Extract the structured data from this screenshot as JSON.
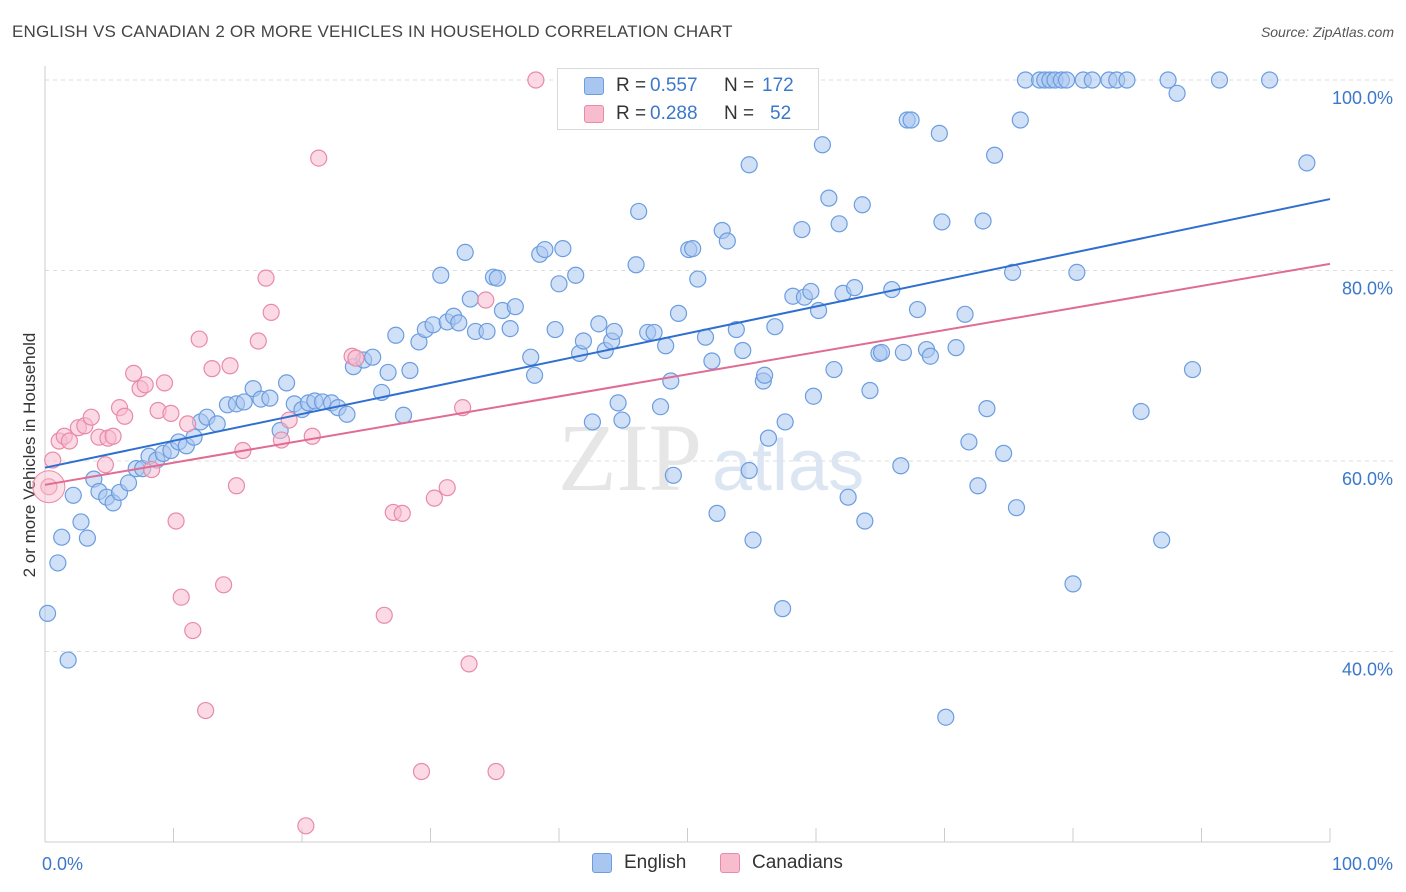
{
  "title": "ENGLISH VS CANADIAN 2 OR MORE VEHICLES IN HOUSEHOLD CORRELATION CHART",
  "source": "Source: ZipAtlas.com",
  "watermark": {
    "zip": "ZIP",
    "atlas": "atlas"
  },
  "legend": {
    "rows": [
      {
        "r_label": "R = ",
        "r_value": "0.557",
        "n_label": "N = ",
        "n_value": "172",
        "color": "#a9c6f0",
        "border": "#6b9de0"
      },
      {
        "r_label": "R = ",
        "r_value": "0.288",
        "n_label": "N = ",
        "n_value": "52",
        "color": "#f8bccf",
        "border": "#e98aa8"
      }
    ]
  },
  "bottom_legend": [
    {
      "label": "English",
      "color": "#a9c6f0",
      "border": "#6b9de0"
    },
    {
      "label": "Canadians",
      "color": "#f8bccf",
      "border": "#e98aa8"
    }
  ],
  "chart_data": {
    "type": "scatter",
    "title": "ENGLISH VS CANADIAN 2 OR MORE VEHICLES IN HOUSEHOLD CORRELATION CHART",
    "xlabel": "",
    "ylabel": "2 or more Vehicles in Household",
    "xlim": [
      0,
      100
    ],
    "ylim": [
      20,
      100
    ],
    "x_tick_labels": [
      "0.0%",
      "100.0%"
    ],
    "y_ticks": [
      40,
      60,
      80,
      100
    ],
    "y_tick_labels": [
      "40.0%",
      "60.0%",
      "80.0%",
      "100.0%"
    ],
    "grid": "horizontal dashed",
    "series": [
      {
        "name": "English",
        "color": "#6b9de0",
        "fill": "#a9c6f0",
        "trend": {
          "x": [
            0,
            100
          ],
          "y": [
            59.3,
            87.5
          ],
          "color": "#2f6fd0"
        },
        "points": [
          [
            0.2,
            44
          ],
          [
            1.3,
            52
          ],
          [
            1.0,
            49.3
          ],
          [
            1.8,
            39.1
          ],
          [
            2.2,
            56.4
          ],
          [
            2.8,
            53.6
          ],
          [
            3.3,
            51.9
          ],
          [
            3.8,
            58.1
          ],
          [
            4.2,
            56.8
          ],
          [
            4.8,
            56.2
          ],
          [
            5.3,
            55.6
          ],
          [
            5.8,
            56.7
          ],
          [
            6.5,
            57.7
          ],
          [
            7.1,
            59.2
          ],
          [
            7.6,
            59.2
          ],
          [
            8.1,
            60.5
          ],
          [
            8.7,
            60.1
          ],
          [
            9.2,
            60.8
          ],
          [
            9.8,
            61.1
          ],
          [
            10.4,
            62.0
          ],
          [
            11.0,
            61.6
          ],
          [
            11.6,
            62.5
          ],
          [
            12.1,
            64.1
          ],
          [
            12.6,
            64.6
          ],
          [
            13.4,
            63.9
          ],
          [
            14.2,
            65.9
          ],
          [
            14.9,
            66.0
          ],
          [
            15.5,
            66.2
          ],
          [
            16.2,
            67.6
          ],
          [
            16.8,
            66.5
          ],
          [
            17.5,
            66.6
          ],
          [
            18.3,
            63.2
          ],
          [
            18.8,
            68.2
          ],
          [
            19.4,
            66.0
          ],
          [
            20.0,
            65.4
          ],
          [
            20.5,
            66.1
          ],
          [
            21.0,
            66.3
          ],
          [
            21.6,
            66.2
          ],
          [
            22.3,
            66.1
          ],
          [
            22.8,
            65.6
          ],
          [
            23.5,
            64.9
          ],
          [
            24.0,
            69.9
          ],
          [
            24.8,
            70.6
          ],
          [
            25.5,
            70.9
          ],
          [
            26.2,
            67.2
          ],
          [
            26.7,
            69.3
          ],
          [
            27.3,
            73.2
          ],
          [
            27.9,
            64.8
          ],
          [
            28.4,
            69.5
          ],
          [
            29.1,
            72.5
          ],
          [
            29.6,
            73.8
          ],
          [
            30.2,
            74.3
          ],
          [
            30.8,
            79.5
          ],
          [
            31.3,
            74.6
          ],
          [
            31.8,
            75.2
          ],
          [
            32.2,
            74.5
          ],
          [
            32.7,
            81.9
          ],
          [
            33.1,
            77.0
          ],
          [
            33.5,
            73.6
          ],
          [
            34.4,
            73.6
          ],
          [
            34.9,
            79.3
          ],
          [
            35.2,
            79.2
          ],
          [
            35.6,
            75.8
          ],
          [
            36.2,
            73.9
          ],
          [
            36.6,
            76.2
          ],
          [
            37.8,
            70.9
          ],
          [
            38.1,
            69.0
          ],
          [
            38.5,
            81.7
          ],
          [
            38.9,
            82.2
          ],
          [
            39.7,
            73.8
          ],
          [
            40.0,
            78.6
          ],
          [
            40.3,
            82.3
          ],
          [
            41.3,
            79.5
          ],
          [
            41.6,
            71.3
          ],
          [
            41.9,
            72.6
          ],
          [
            42.6,
            64.1
          ],
          [
            43.1,
            74.4
          ],
          [
            43.6,
            71.6
          ],
          [
            44.1,
            72.6
          ],
          [
            44.3,
            73.6
          ],
          [
            44.6,
            66.1
          ],
          [
            44.9,
            64.3
          ],
          [
            46.0,
            80.6
          ],
          [
            46.2,
            86.2
          ],
          [
            46.9,
            73.5
          ],
          [
            47.4,
            73.5
          ],
          [
            47.9,
            65.7
          ],
          [
            48.3,
            72.1
          ],
          [
            48.7,
            68.4
          ],
          [
            48.9,
            58.5
          ],
          [
            49.3,
            75.5
          ],
          [
            50.1,
            82.2
          ],
          [
            50.4,
            82.3
          ],
          [
            50.8,
            79.1
          ],
          [
            51.4,
            73.0
          ],
          [
            51.9,
            70.5
          ],
          [
            52.3,
            54.5
          ],
          [
            52.7,
            84.2
          ],
          [
            53.1,
            83.1
          ],
          [
            53.8,
            73.8
          ],
          [
            54.3,
            71.6
          ],
          [
            54.8,
            91.1
          ],
          [
            54.8,
            59.0
          ],
          [
            55.1,
            51.7
          ],
          [
            55.9,
            68.4
          ],
          [
            56.0,
            69.0
          ],
          [
            56.3,
            62.4
          ],
          [
            56.8,
            74.1
          ],
          [
            57.4,
            44.5
          ],
          [
            57.6,
            64.1
          ],
          [
            58.2,
            77.3
          ],
          [
            58.9,
            84.3
          ],
          [
            59.1,
            77.2
          ],
          [
            59.6,
            77.8
          ],
          [
            59.8,
            66.8
          ],
          [
            60.2,
            75.8
          ],
          [
            60.5,
            93.2
          ],
          [
            61.0,
            87.6
          ],
          [
            61.4,
            69.6
          ],
          [
            61.8,
            84.9
          ],
          [
            62.1,
            77.6
          ],
          [
            62.5,
            56.2
          ],
          [
            63.0,
            78.2
          ],
          [
            63.6,
            86.9
          ],
          [
            63.8,
            53.7
          ],
          [
            64.2,
            67.4
          ],
          [
            64.9,
            71.3
          ],
          [
            65.1,
            71.4
          ],
          [
            65.9,
            78.0
          ],
          [
            66.6,
            59.5
          ],
          [
            66.8,
            71.4
          ],
          [
            67.1,
            95.8
          ],
          [
            67.4,
            95.8
          ],
          [
            67.9,
            75.9
          ],
          [
            68.6,
            71.7
          ],
          [
            68.9,
            71.0
          ],
          [
            69.6,
            94.4
          ],
          [
            69.8,
            85.1
          ],
          [
            70.1,
            33.1
          ],
          [
            70.9,
            71.9
          ],
          [
            71.6,
            75.4
          ],
          [
            71.9,
            62.0
          ],
          [
            72.6,
            57.4
          ],
          [
            73.0,
            85.2
          ],
          [
            73.3,
            65.5
          ],
          [
            73.9,
            92.1
          ],
          [
            74.6,
            60.8
          ],
          [
            75.3,
            79.8
          ],
          [
            75.6,
            55.1
          ],
          [
            75.9,
            95.8
          ],
          [
            76.3,
            100
          ],
          [
            77.4,
            100
          ],
          [
            77.8,
            100
          ],
          [
            78.2,
            100
          ],
          [
            78.6,
            100
          ],
          [
            79.1,
            100
          ],
          [
            79.5,
            100
          ],
          [
            80.0,
            47.1
          ],
          [
            80.3,
            79.8
          ],
          [
            80.8,
            100
          ],
          [
            81.5,
            100
          ],
          [
            82.8,
            100
          ],
          [
            83.4,
            100
          ],
          [
            84.2,
            100
          ],
          [
            85.3,
            65.2
          ],
          [
            86.9,
            51.7
          ],
          [
            87.4,
            100
          ],
          [
            88.1,
            98.6
          ],
          [
            89.3,
            69.6
          ],
          [
            91.4,
            100
          ],
          [
            95.3,
            100
          ],
          [
            98.2,
            91.3
          ]
        ]
      },
      {
        "name": "Canadians",
        "color": "#e98aa8",
        "fill": "#f8bccf",
        "trend": {
          "x": [
            0,
            100
          ],
          "y": [
            57.5,
            80.7
          ],
          "color": "#e06b93"
        },
        "points": [
          [
            0.3,
            57.3
          ],
          [
            0.6,
            60.1
          ],
          [
            1.1,
            62.1
          ],
          [
            1.5,
            62.6
          ],
          [
            1.9,
            62.1
          ],
          [
            2.6,
            63.5
          ],
          [
            3.1,
            63.7
          ],
          [
            3.6,
            64.6
          ],
          [
            4.2,
            62.5
          ],
          [
            4.7,
            59.6
          ],
          [
            4.9,
            62.4
          ],
          [
            5.3,
            62.6
          ],
          [
            5.8,
            65.6
          ],
          [
            6.2,
            64.7
          ],
          [
            6.9,
            69.2
          ],
          [
            7.4,
            67.6
          ],
          [
            7.8,
            68.0
          ],
          [
            8.3,
            59.1
          ],
          [
            8.8,
            65.3
          ],
          [
            9.3,
            68.2
          ],
          [
            9.8,
            65.0
          ],
          [
            10.2,
            53.7
          ],
          [
            10.6,
            45.7
          ],
          [
            11.1,
            63.9
          ],
          [
            11.5,
            42.2
          ],
          [
            12.0,
            72.8
          ],
          [
            12.5,
            33.8
          ],
          [
            13.0,
            69.7
          ],
          [
            13.9,
            47.0
          ],
          [
            14.4,
            70.0
          ],
          [
            14.9,
            57.4
          ],
          [
            15.4,
            61.1
          ],
          [
            16.6,
            72.6
          ],
          [
            17.2,
            79.2
          ],
          [
            17.6,
            75.6
          ],
          [
            18.4,
            62.2
          ],
          [
            19.0,
            64.3
          ],
          [
            20.3,
            21.7
          ],
          [
            20.8,
            62.6
          ],
          [
            21.3,
            91.8
          ],
          [
            23.9,
            71.0
          ],
          [
            24.2,
            70.8
          ],
          [
            26.4,
            43.8
          ],
          [
            27.1,
            54.6
          ],
          [
            27.8,
            54.5
          ],
          [
            29.3,
            27.4
          ],
          [
            30.3,
            56.1
          ],
          [
            31.3,
            57.2
          ],
          [
            32.5,
            65.6
          ],
          [
            33.0,
            38.7
          ],
          [
            34.3,
            76.9
          ],
          [
            35.1,
            27.4
          ],
          [
            38.2,
            100
          ]
        ]
      }
    ]
  }
}
